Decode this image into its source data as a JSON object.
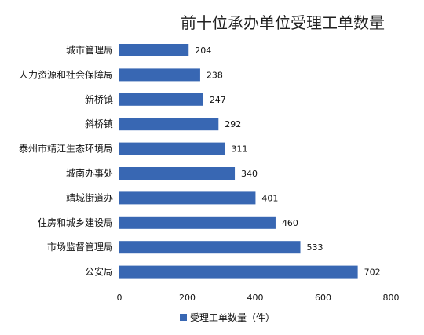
{
  "chart_data": {
    "type": "bar",
    "orientation": "horizontal",
    "title": "前十位承办单位受理工单数量",
    "categories": [
      "城市管理局",
      "人力资源和社会保障局",
      "新桥镇",
      "斜桥镇",
      "泰州市靖江生态环境局",
      "城南办事处",
      "靖城街道办",
      "住房和城乡建设局",
      "市场监督管理局",
      "公安局"
    ],
    "series": [
      {
        "name": "受理工单数量（件）",
        "values": [
          204,
          238,
          247,
          292,
          311,
          340,
          401,
          460,
          533,
          702
        ],
        "color": "#3867b3"
      }
    ],
    "xlim": [
      0,
      800
    ],
    "xticks": [
      0,
      200,
      400,
      600,
      800
    ],
    "grid": false,
    "legend_position": "bottom"
  }
}
